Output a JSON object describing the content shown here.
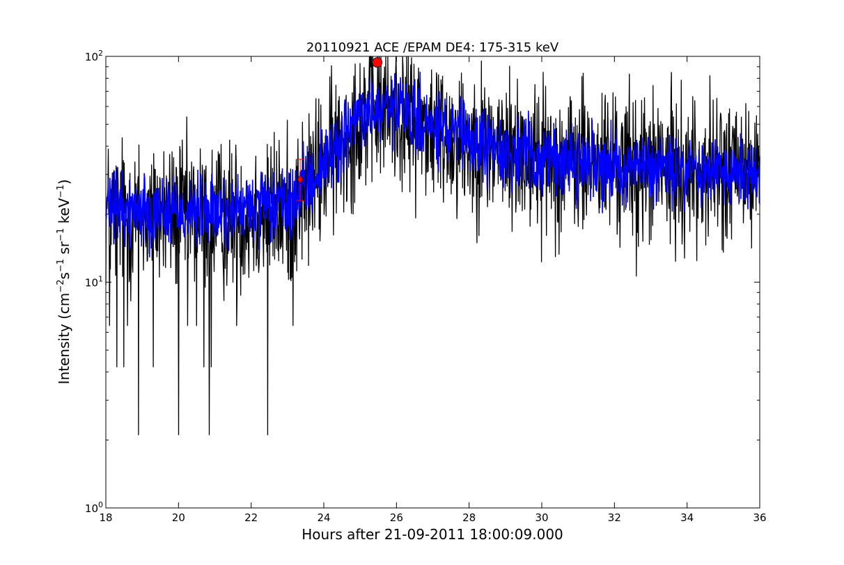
{
  "chart_data": {
    "type": "line",
    "title": "20110921 ACE /EPAM DE4: 175-315 keV",
    "xlabel": "Hours after 21-09-2011 18:00:09.000",
    "ylabel": {
      "prefix": "Intensity (cm",
      "exp1": "−2",
      "part2": "s",
      "exp2": "−1",
      "part3": "sr",
      "exp3": "−1",
      "part4": "keV",
      "exp4": "−1",
      "suffix": ")"
    },
    "xlim": [
      18,
      36
    ],
    "ylim": [
      1,
      100
    ],
    "yscale": "log",
    "grid": false,
    "x_ticks": [
      "18",
      "20",
      "22",
      "24",
      "26",
      "28",
      "30",
      "32",
      "34",
      "36"
    ],
    "x_tick_values": [
      18,
      20,
      22,
      24,
      26,
      28,
      30,
      32,
      34,
      36
    ],
    "y_ticks": [
      {
        "value": 1,
        "base": "10",
        "exp": "0"
      },
      {
        "value": 10,
        "base": "10",
        "exp": "1"
      },
      {
        "value": 100,
        "base": "10",
        "exp": "2"
      }
    ],
    "series": [
      {
        "color": "#000000",
        "profile_x": [
          18.0,
          19.0,
          20.0,
          21.0,
          22.0,
          23.0,
          23.5,
          24.0,
          24.5,
          25.0,
          25.5,
          26.0,
          26.5,
          27.0,
          28.0,
          29.0,
          30.0,
          31.0,
          32.0,
          33.0,
          34.0,
          35.0,
          36.0
        ],
        "profile_y": [
          20,
          20,
          20,
          19,
          20,
          21,
          25,
          33,
          42,
          55,
          58,
          57,
          52,
          47,
          42,
          38,
          35,
          34,
          33,
          32,
          31,
          31,
          31
        ],
        "noise_decades": 0.17,
        "dropouts": [
          {
            "x": 18.1,
            "y": 6.4
          },
          {
            "x": 18.3,
            "y": 4.2
          },
          {
            "x": 18.5,
            "y": 4.2
          },
          {
            "x": 18.6,
            "y": 6.4
          },
          {
            "x": 18.9,
            "y": 2.1
          },
          {
            "x": 19.3,
            "y": 4.2
          },
          {
            "x": 20.0,
            "y": 2.1
          },
          {
            "x": 20.25,
            "y": 6.4
          },
          {
            "x": 20.5,
            "y": 6.4
          },
          {
            "x": 20.7,
            "y": 4.2
          },
          {
            "x": 20.85,
            "y": 2.1
          },
          {
            "x": 20.9,
            "y": 4.2
          },
          {
            "x": 21.6,
            "y": 6.4
          },
          {
            "x": 22.45,
            "y": 2.1
          },
          {
            "x": 23.15,
            "y": 6.4
          },
          {
            "x": 32.6,
            "y": 10.6
          }
        ]
      },
      {
        "color": "#0000ff",
        "profile_x": [
          18.0,
          19.0,
          20.0,
          21.0,
          22.0,
          23.0,
          23.5,
          24.0,
          24.5,
          25.0,
          25.5,
          26.0,
          26.5,
          27.0,
          28.0,
          29.0,
          30.0,
          31.0,
          32.0,
          33.0,
          34.0,
          35.0,
          36.0
        ],
        "profile_y": [
          21,
          21,
          21,
          20,
          21,
          22,
          26,
          34,
          43,
          55,
          57,
          58,
          53,
          48,
          42,
          38,
          35,
          34,
          33,
          32,
          31,
          31,
          31
        ],
        "noise_decades": 0.08
      }
    ],
    "markers": [
      {
        "x": 25.47,
        "y": 94,
        "shape": "circle",
        "color": "#ff0000"
      },
      {
        "x": 23.35,
        "y": 28.5,
        "shape": "diamond",
        "color": "#ff0000",
        "error_low": 23,
        "error_high": 35
      }
    ]
  }
}
